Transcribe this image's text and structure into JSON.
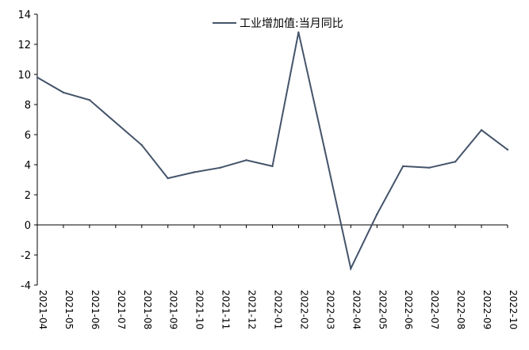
{
  "chart_data": {
    "type": "line",
    "title": "",
    "xlabel": "",
    "ylabel": "",
    "ylim": [
      -4,
      14
    ],
    "yticks": [
      -4,
      -2,
      0,
      2,
      4,
      6,
      8,
      10,
      12,
      14
    ],
    "ytick_labels": [
      "-4",
      "-2",
      "0",
      "2",
      "4",
      "6",
      "8",
      "10",
      "12",
      "14"
    ],
    "grid": false,
    "legend_position": "top-center",
    "categories": [
      "2021-04",
      "2021-05",
      "2021-06",
      "2021-07",
      "2021-08",
      "2021-09",
      "2021-10",
      "2021-11",
      "2021-12",
      "2022-01",
      "2022-02",
      "2022-03",
      "2022-04",
      "2022-05",
      "2022-06",
      "2022-07",
      "2022-08",
      "2022-09",
      "2022-10"
    ],
    "series": [
      {
        "name": "工业增加值:当月同比",
        "color": "#44546a",
        "x": [
          "2021-04",
          "2021-05",
          "2021-06",
          "2021-08",
          "2021-09",
          "2021-10",
          "2021-11",
          "2021-12",
          "2022-01",
          "2022-02",
          "2022-03",
          "2022-04",
          "2022-05",
          "2022-06",
          "2022-07",
          "2022-08",
          "2022-09",
          "2022-10"
        ],
        "values": [
          9.8,
          8.8,
          8.3,
          5.3,
          3.1,
          3.5,
          3.8,
          4.3,
          3.9,
          12.8,
          5.0,
          -2.9,
          0.7,
          3.9,
          3.8,
          4.2,
          6.3,
          5.0
        ]
      }
    ]
  }
}
